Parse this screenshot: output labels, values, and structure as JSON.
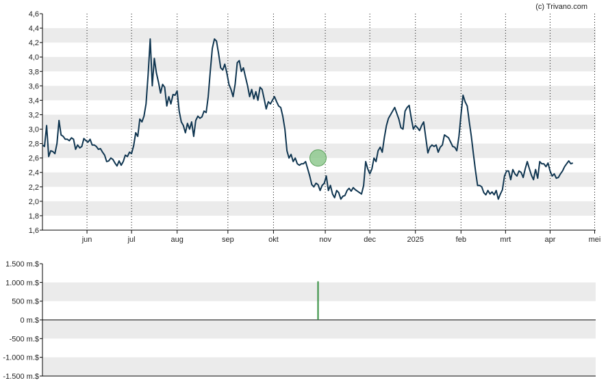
{
  "credit": "(c) Trivano.com",
  "colors": {
    "line": "#0f3550",
    "band": "#ebebeb",
    "volume_bar": "#2e8b3a",
    "marker_fill": "#8fc98f",
    "marker_stroke": "#5aa05a",
    "axis": "#000000",
    "month_grid": "#000000"
  },
  "chart_data": [
    {
      "type": "line",
      "title": "",
      "xlabel": "",
      "ylabel": "",
      "ylim": [
        1.6,
        4.6
      ],
      "y_ticks": [
        "1,6",
        "1,8",
        "2,0",
        "2,2",
        "2,4",
        "2,6",
        "2,8",
        "3,0",
        "3,2",
        "3,4",
        "3,6",
        "3,8",
        "4,0",
        "4,2",
        "4,4",
        "4,6"
      ],
      "x_range_weeks": [
        0,
        53.4
      ],
      "x_ticks": [
        {
          "label": "jun",
          "week": 4.3
        },
        {
          "label": "jul",
          "week": 8.6
        },
        {
          "label": "aug",
          "week": 13.0
        },
        {
          "label": "sep",
          "week": 17.9
        },
        {
          "label": "okt",
          "week": 22.3
        },
        {
          "label": "nov",
          "week": 27.3
        },
        {
          "label": "dec",
          "week": 31.6
        },
        {
          "label": "2025",
          "week": 36.0
        },
        {
          "label": "feb",
          "week": 40.4
        },
        {
          "label": "mrt",
          "week": 44.7
        },
        {
          "label": "apr",
          "week": 49.0
        },
        {
          "label": "mei",
          "week": 53.3
        }
      ],
      "grid": "alternating horizontal bands, dotted vertical month lines",
      "marker": {
        "week": 26.6,
        "value": 2.6
      },
      "series": [
        {
          "values": [
            [
              0.0,
              2.78
            ],
            [
              0.2,
              2.76
            ],
            [
              0.4,
              3.05
            ],
            [
              0.6,
              2.62
            ],
            [
              0.8,
              2.7
            ],
            [
              1.0,
              2.69
            ],
            [
              1.2,
              2.66
            ],
            [
              1.4,
              2.8
            ],
            [
              1.6,
              3.12
            ],
            [
              1.8,
              2.92
            ],
            [
              2.0,
              2.9
            ],
            [
              2.2,
              2.86
            ],
            [
              2.4,
              2.86
            ],
            [
              2.6,
              2.84
            ],
            [
              2.8,
              2.88
            ],
            [
              3.0,
              2.86
            ],
            [
              3.2,
              2.72
            ],
            [
              3.4,
              2.78
            ],
            [
              3.6,
              2.74
            ],
            [
              3.8,
              2.76
            ],
            [
              4.0,
              2.87
            ],
            [
              4.2,
              2.84
            ],
            [
              4.4,
              2.82
            ],
            [
              4.6,
              2.86
            ],
            [
              4.8,
              2.78
            ],
            [
              5.0,
              2.78
            ],
            [
              5.2,
              2.76
            ],
            [
              5.4,
              2.72
            ],
            [
              5.6,
              2.73
            ],
            [
              5.8,
              2.68
            ],
            [
              6.0,
              2.64
            ],
            [
              6.2,
              2.55
            ],
            [
              6.4,
              2.56
            ],
            [
              6.6,
              2.6
            ],
            [
              6.8,
              2.58
            ],
            [
              7.0,
              2.53
            ],
            [
              7.2,
              2.49
            ],
            [
              7.4,
              2.56
            ],
            [
              7.6,
              2.5
            ],
            [
              7.8,
              2.55
            ],
            [
              8.0,
              2.64
            ],
            [
              8.2,
              2.62
            ],
            [
              8.4,
              2.68
            ],
            [
              8.6,
              2.66
            ],
            [
              8.8,
              2.77
            ],
            [
              9.0,
              2.95
            ],
            [
              9.2,
              2.9
            ],
            [
              9.4,
              3.14
            ],
            [
              9.6,
              3.1
            ],
            [
              9.8,
              3.18
            ],
            [
              10.0,
              3.35
            ],
            [
              10.2,
              3.75
            ],
            [
              10.4,
              4.25
            ],
            [
              10.6,
              3.6
            ],
            [
              10.8,
              3.98
            ],
            [
              11.0,
              3.78
            ],
            [
              11.2,
              3.65
            ],
            [
              11.4,
              3.5
            ],
            [
              11.6,
              3.62
            ],
            [
              11.8,
              3.58
            ],
            [
              12.0,
              3.32
            ],
            [
              12.2,
              3.45
            ],
            [
              12.4,
              3.35
            ],
            [
              12.6,
              3.48
            ],
            [
              12.8,
              3.47
            ],
            [
              13.0,
              3.53
            ],
            [
              13.2,
              3.25
            ],
            [
              13.4,
              3.1
            ],
            [
              13.6,
              3.05
            ],
            [
              13.8,
              2.95
            ],
            [
              14.0,
              3.08
            ],
            [
              14.2,
              3.0
            ],
            [
              14.4,
              3.1
            ],
            [
              14.6,
              2.9
            ],
            [
              14.8,
              3.12
            ],
            [
              15.0,
              3.18
            ],
            [
              15.2,
              3.15
            ],
            [
              15.4,
              3.17
            ],
            [
              15.6,
              3.25
            ],
            [
              15.8,
              3.23
            ],
            [
              16.0,
              3.45
            ],
            [
              16.2,
              3.8
            ],
            [
              16.4,
              4.12
            ],
            [
              16.6,
              4.25
            ],
            [
              16.8,
              4.22
            ],
            [
              17.0,
              4.05
            ],
            [
              17.2,
              3.85
            ],
            [
              17.4,
              3.82
            ],
            [
              17.6,
              3.9
            ],
            [
              17.8,
              3.78
            ],
            [
              18.0,
              3.62
            ],
            [
              18.2,
              3.55
            ],
            [
              18.4,
              3.45
            ],
            [
              18.6,
              3.62
            ],
            [
              18.8,
              3.92
            ],
            [
              19.0,
              3.95
            ],
            [
              19.2,
              3.8
            ],
            [
              19.4,
              3.85
            ],
            [
              19.6,
              3.72
            ],
            [
              19.8,
              3.6
            ],
            [
              20.0,
              3.45
            ],
            [
              20.2,
              3.55
            ],
            [
              20.4,
              3.42
            ],
            [
              20.6,
              3.52
            ],
            [
              20.8,
              3.4
            ],
            [
              21.0,
              3.58
            ],
            [
              21.2,
              3.55
            ],
            [
              21.4,
              3.42
            ],
            [
              21.6,
              3.28
            ],
            [
              21.8,
              3.38
            ],
            [
              22.0,
              3.35
            ],
            [
              22.2,
              3.4
            ],
            [
              22.4,
              3.45
            ],
            [
              22.6,
              3.38
            ],
            [
              22.8,
              3.32
            ],
            [
              23.0,
              3.3
            ],
            [
              23.2,
              3.18
            ],
            [
              23.4,
              3.0
            ],
            [
              23.6,
              2.7
            ],
            [
              23.8,
              2.6
            ],
            [
              24.0,
              2.65
            ],
            [
              24.2,
              2.55
            ],
            [
              24.4,
              2.6
            ],
            [
              24.6,
              2.52
            ],
            [
              24.8,
              2.5
            ],
            [
              25.0,
              2.52
            ],
            [
              25.2,
              2.52
            ],
            [
              25.4,
              2.55
            ],
            [
              25.6,
              2.45
            ],
            [
              25.8,
              2.35
            ],
            [
              26.0,
              2.23
            ],
            [
              26.2,
              2.2
            ],
            [
              26.4,
              2.25
            ],
            [
              26.6,
              2.23
            ],
            [
              26.8,
              2.15
            ],
            [
              27.0,
              2.22
            ],
            [
              27.2,
              2.25
            ],
            [
              27.4,
              2.35
            ],
            [
              27.6,
              2.15
            ],
            [
              27.8,
              2.22
            ],
            [
              28.0,
              2.1
            ],
            [
              28.2,
              2.05
            ],
            [
              28.4,
              2.15
            ],
            [
              28.6,
              2.12
            ],
            [
              28.8,
              2.03
            ],
            [
              29.0,
              2.07
            ],
            [
              29.2,
              2.08
            ],
            [
              29.4,
              2.15
            ],
            [
              29.6,
              2.18
            ],
            [
              29.8,
              2.14
            ],
            [
              30.0,
              2.19
            ],
            [
              30.2,
              2.16
            ],
            [
              30.4,
              2.14
            ],
            [
              30.6,
              2.12
            ],
            [
              30.8,
              2.1
            ],
            [
              31.0,
              2.22
            ],
            [
              31.2,
              2.55
            ],
            [
              31.4,
              2.45
            ],
            [
              31.6,
              2.38
            ],
            [
              31.8,
              2.45
            ],
            [
              32.0,
              2.6
            ],
            [
              32.2,
              2.55
            ],
            [
              32.4,
              2.7
            ],
            [
              32.6,
              2.75
            ],
            [
              32.8,
              2.68
            ],
            [
              33.0,
              2.88
            ],
            [
              33.2,
              3.05
            ],
            [
              33.4,
              3.15
            ],
            [
              33.6,
              3.2
            ],
            [
              33.8,
              3.25
            ],
            [
              34.0,
              3.3
            ],
            [
              34.2,
              3.22
            ],
            [
              34.4,
              3.14
            ],
            [
              34.6,
              3.02
            ],
            [
              34.8,
              3.0
            ],
            [
              35.0,
              3.25
            ],
            [
              35.2,
              3.3
            ],
            [
              35.4,
              3.33
            ],
            [
              35.6,
              3.15
            ],
            [
              35.8,
              3.0
            ],
            [
              36.0,
              3.05
            ],
            [
              36.2,
              3.02
            ],
            [
              36.4,
              2.98
            ],
            [
              36.6,
              3.05
            ],
            [
              36.8,
              3.1
            ],
            [
              37.0,
              2.88
            ],
            [
              37.2,
              2.67
            ],
            [
              37.4,
              2.75
            ],
            [
              37.6,
              2.78
            ],
            [
              37.8,
              2.76
            ],
            [
              38.0,
              2.78
            ],
            [
              38.2,
              2.68
            ],
            [
              38.4,
              2.75
            ],
            [
              38.6,
              2.78
            ],
            [
              38.8,
              2.92
            ],
            [
              39.0,
              2.9
            ],
            [
              39.2,
              2.88
            ],
            [
              39.4,
              2.82
            ],
            [
              39.6,
              2.76
            ],
            [
              39.8,
              2.75
            ],
            [
              40.0,
              2.7
            ],
            [
              40.2,
              2.9
            ],
            [
              40.4,
              3.2
            ],
            [
              40.6,
              3.47
            ],
            [
              40.8,
              3.38
            ],
            [
              41.0,
              3.32
            ],
            [
              41.2,
              3.1
            ],
            [
              41.4,
              2.9
            ],
            [
              41.6,
              2.65
            ],
            [
              41.8,
              2.42
            ],
            [
              42.0,
              2.22
            ],
            [
              42.2,
              2.22
            ],
            [
              42.4,
              2.2
            ],
            [
              42.6,
              2.12
            ],
            [
              42.8,
              2.09
            ],
            [
              43.0,
              2.15
            ],
            [
              43.2,
              2.1
            ],
            [
              43.4,
              2.13
            ],
            [
              43.6,
              2.09
            ],
            [
              43.8,
              2.15
            ],
            [
              44.0,
              2.03
            ],
            [
              44.2,
              2.1
            ],
            [
              44.4,
              2.16
            ],
            [
              44.6,
              2.35
            ],
            [
              44.8,
              2.42
            ],
            [
              45.0,
              2.42
            ],
            [
              45.2,
              2.3
            ],
            [
              45.4,
              2.44
            ],
            [
              45.6,
              2.38
            ],
            [
              45.8,
              2.35
            ],
            [
              46.0,
              2.42
            ],
            [
              46.2,
              2.4
            ],
            [
              46.4,
              2.33
            ],
            [
              46.6,
              2.45
            ],
            [
              46.8,
              2.55
            ],
            [
              47.0,
              2.45
            ],
            [
              47.2,
              2.36
            ],
            [
              47.4,
              2.3
            ],
            [
              47.6,
              2.44
            ],
            [
              47.8,
              2.32
            ],
            [
              48.0,
              2.55
            ],
            [
              48.2,
              2.52
            ],
            [
              48.4,
              2.52
            ],
            [
              48.6,
              2.48
            ],
            [
              48.8,
              2.53
            ],
            [
              49.0,
              2.42
            ],
            [
              49.2,
              2.35
            ],
            [
              49.4,
              2.38
            ],
            [
              49.6,
              2.32
            ],
            [
              49.8,
              2.33
            ],
            [
              50.0,
              2.38
            ],
            [
              50.2,
              2.42
            ],
            [
              50.4,
              2.48
            ],
            [
              50.6,
              2.52
            ],
            [
              50.8,
              2.56
            ],
            [
              51.0,
              2.52
            ],
            [
              51.2,
              2.53
            ]
          ]
        }
      ]
    },
    {
      "type": "bar",
      "title": "",
      "xlabel": "",
      "ylabel": "",
      "ylim": [
        -1500,
        1500
      ],
      "y_ticks": [
        "1.500 m.$",
        "1.000 m.$",
        "500 m.$",
        "0 m.$",
        "-500 m.$",
        "-1.000 m.$",
        "-1.500 m.$"
      ],
      "y_tick_values": [
        1500,
        1000,
        500,
        0,
        -500,
        -1000,
        -1500
      ],
      "grid": "alternating horizontal bands",
      "bars": [
        {
          "week": 26.6,
          "value": 1030
        }
      ]
    }
  ]
}
